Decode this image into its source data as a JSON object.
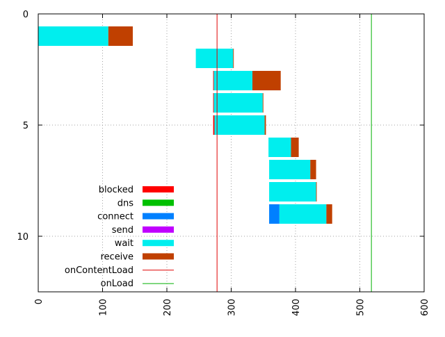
{
  "chart_data": {
    "type": "bar",
    "orientation": "horizontal-stacked",
    "title": "",
    "xlabel": "",
    "ylabel": "",
    "xlim": [
      0,
      600
    ],
    "ylim": [
      12.5,
      0
    ],
    "x_ticks": [
      "0",
      "100",
      "200",
      "300",
      "400",
      "500",
      "600"
    ],
    "y_ticks": [
      "0",
      "5",
      "10"
    ],
    "x_tick_values": [
      0,
      100,
      200,
      300,
      400,
      500,
      600
    ],
    "y_tick_values": [
      0,
      5,
      10
    ],
    "grid": true,
    "legend_position": "bottom-left",
    "legend": [
      {
        "name": "blocked",
        "color": "#ff0000",
        "kind": "bar"
      },
      {
        "name": "dns",
        "color": "#00c000",
        "kind": "bar"
      },
      {
        "name": "connect",
        "color": "#0080ff",
        "kind": "bar"
      },
      {
        "name": "send",
        "color": "#c000ff",
        "kind": "bar"
      },
      {
        "name": "wait",
        "color": "#00eeee",
        "kind": "bar"
      },
      {
        "name": "receive",
        "color": "#c04000",
        "kind": "bar"
      },
      {
        "name": "onContentLoad",
        "color": "#e00000",
        "kind": "line"
      },
      {
        "name": "onLoad",
        "color": "#00b000",
        "kind": "line"
      }
    ],
    "requests": [
      {
        "row": 1,
        "segments": [
          {
            "phase": "wait",
            "start": 0,
            "end": 109
          },
          {
            "phase": "receive",
            "start": 109,
            "end": 147
          }
        ]
      },
      {
        "row": 2,
        "segments": [
          {
            "phase": "wait",
            "start": 245,
            "end": 303
          },
          {
            "phase": "receive",
            "start": 303,
            "end": 304
          }
        ]
      },
      {
        "row": 3,
        "segments": [
          {
            "phase": "blocked",
            "start": 272,
            "end": 273
          },
          {
            "phase": "wait",
            "start": 273,
            "end": 333
          },
          {
            "phase": "receive",
            "start": 333,
            "end": 377
          }
        ]
      },
      {
        "row": 4,
        "segments": [
          {
            "phase": "blocked",
            "start": 272,
            "end": 273
          },
          {
            "phase": "wait",
            "start": 273,
            "end": 349
          },
          {
            "phase": "receive",
            "start": 349,
            "end": 350
          }
        ]
      },
      {
        "row": 5,
        "segments": [
          {
            "phase": "blocked",
            "start": 272,
            "end": 274
          },
          {
            "phase": "wait",
            "start": 274,
            "end": 352
          },
          {
            "phase": "receive",
            "start": 352,
            "end": 354
          }
        ]
      },
      {
        "row": 6,
        "segments": [
          {
            "phase": "wait",
            "start": 358,
            "end": 393
          },
          {
            "phase": "receive",
            "start": 393,
            "end": 405
          }
        ]
      },
      {
        "row": 7,
        "segments": [
          {
            "phase": "wait",
            "start": 359,
            "end": 423
          },
          {
            "phase": "receive",
            "start": 423,
            "end": 432
          }
        ]
      },
      {
        "row": 8,
        "segments": [
          {
            "phase": "wait",
            "start": 359,
            "end": 432
          },
          {
            "phase": "receive",
            "start": 432,
            "end": 433
          }
        ]
      },
      {
        "row": 9,
        "segments": [
          {
            "phase": "connect",
            "start": 359,
            "end": 375
          },
          {
            "phase": "wait",
            "start": 375,
            "end": 448
          },
          {
            "phase": "receive",
            "start": 448,
            "end": 457
          }
        ]
      }
    ],
    "markers": [
      {
        "name": "onContentLoad",
        "x": 278
      },
      {
        "name": "onLoad",
        "x": 518
      }
    ]
  }
}
